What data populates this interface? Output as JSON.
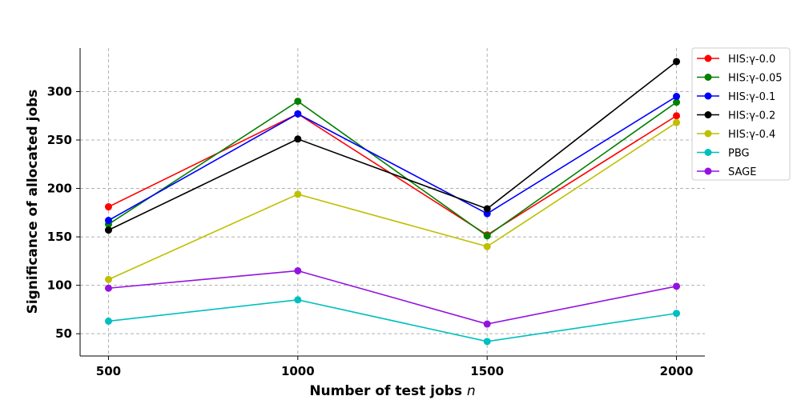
{
  "chart_data": {
    "type": "line",
    "xlabel": "Number of test jobs n",
    "ylabel": "Significance of allocated jobs",
    "categories": [
      500,
      1000,
      1500,
      2000
    ],
    "x_ticks": [
      "500",
      "1000",
      "1500",
      "2000"
    ],
    "y_ticks": [
      "50",
      "100",
      "150",
      "200",
      "250",
      "300"
    ],
    "ylim": [
      27,
      345
    ],
    "xlim": [
      425,
      2075
    ],
    "grid": true,
    "legend_position": "top-right",
    "series": [
      {
        "name": "HIS:γ-0.0",
        "color": "#ff0000",
        "values": [
          181,
          277,
          152,
          275
        ]
      },
      {
        "name": "HIS:γ-0.05",
        "color": "#008000",
        "values": [
          163,
          290,
          151,
          289
        ]
      },
      {
        "name": "HIS:γ-0.1",
        "color": "#0000ff",
        "values": [
          167,
          277,
          174,
          295
        ]
      },
      {
        "name": "HIS:γ-0.2",
        "color": "#000000",
        "values": [
          157,
          251,
          179,
          331
        ]
      },
      {
        "name": "HIS:γ-0.4",
        "color": "#bfbf00",
        "values": [
          106,
          194,
          140,
          268
        ]
      },
      {
        "name": "PBG",
        "color": "#00bfbf",
        "values": [
          63,
          85,
          42,
          71
        ]
      },
      {
        "name": "SAGE",
        "color": "#9412e0",
        "values": [
          97,
          115,
          60,
          99
        ]
      }
    ]
  }
}
